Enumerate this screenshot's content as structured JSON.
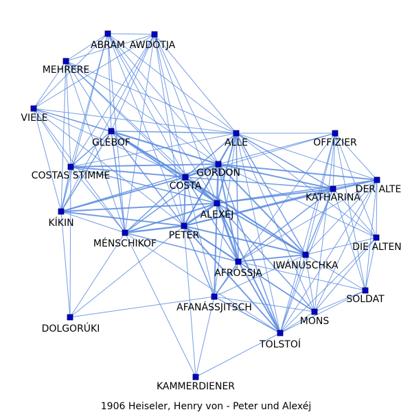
{
  "caption": "1906  Heiseler,  Henry  von  -  Peter  und  Alexéj",
  "colors": {
    "edge": "#5b8be0",
    "node_fill": "#0000cc",
    "node_stroke": "#000044",
    "background": "#ffffff"
  },
  "nodes": [
    {
      "id": "abram",
      "name": "ABRAM"
    },
    {
      "id": "awdotja",
      "name": "AWDÓTJA"
    },
    {
      "id": "mehrere",
      "name": "MEHRERE"
    },
    {
      "id": "viele",
      "name": "VIELE"
    },
    {
      "id": "glebof",
      "name": "GLÉBOF"
    },
    {
      "id": "alle",
      "name": "ALLE"
    },
    {
      "id": "offizier",
      "name": "OFFIZIER"
    },
    {
      "id": "gordon",
      "name": "GORDON"
    },
    {
      "id": "costas",
      "name": "COSTAS STIMME"
    },
    {
      "id": "costa",
      "name": "COSTA"
    },
    {
      "id": "deralte",
      "name": "DER ALTE"
    },
    {
      "id": "katharina",
      "name": "KATHARINA"
    },
    {
      "id": "alexej",
      "name": "ALEXÉJ"
    },
    {
      "id": "kikin",
      "name": "KÍKIN"
    },
    {
      "id": "peter",
      "name": "PETER"
    },
    {
      "id": "menschikof",
      "name": "MÉNSCHIKOF"
    },
    {
      "id": "diealten",
      "name": "DIE ALTEN"
    },
    {
      "id": "iwanuschka",
      "name": "IWÁNUSCHKA"
    },
    {
      "id": "afrossja",
      "name": "AFRÓSSJA"
    },
    {
      "id": "soldat",
      "name": "SOLDAT"
    },
    {
      "id": "afanassjitsch",
      "name": "AFANÁSSJITSCH"
    },
    {
      "id": "dolgoruki",
      "name": "DOLGORÚKI"
    },
    {
      "id": "mons",
      "name": "MONS"
    },
    {
      "id": "tolstoi",
      "name": "TOLSTOÍ"
    },
    {
      "id": "kammerdiener",
      "name": "KAMMERDIENER"
    }
  ],
  "edges": [
    [
      "alexej",
      "peter",
      3
    ],
    [
      "alexej",
      "afrossja",
      3
    ],
    [
      "alexej",
      "gordon",
      2.5
    ],
    [
      "alexej",
      "costa",
      2.5
    ],
    [
      "alexej",
      "glebof",
      2
    ],
    [
      "alexej",
      "katharina",
      2
    ],
    [
      "alexej",
      "iwanuschka",
      2
    ],
    [
      "alexej",
      "kikin",
      2
    ],
    [
      "alexej",
      "menschikof",
      2
    ],
    [
      "alexej",
      "alle",
      2
    ],
    [
      "alexej",
      "tolstoi",
      2
    ],
    [
      "alexej",
      "afanassjitsch",
      2
    ],
    [
      "alexej",
      "costas",
      1.5
    ],
    [
      "alexej",
      "deralte",
      1.5
    ],
    [
      "alexej",
      "mons",
      1.5
    ],
    [
      "peter",
      "menschikof",
      2.5
    ],
    [
      "peter",
      "costa",
      2
    ],
    [
      "peter",
      "gordon",
      2
    ],
    [
      "peter",
      "afrossja",
      2
    ],
    [
      "peter",
      "iwanuschka",
      2
    ],
    [
      "peter",
      "katharina",
      2
    ],
    [
      "peter",
      "tolstoi",
      2
    ],
    [
      "peter",
      "kikin",
      2
    ],
    [
      "peter",
      "alle",
      1.5
    ],
    [
      "peter",
      "afanassjitsch",
      1.5
    ],
    [
      "peter",
      "deralte",
      1.5
    ],
    [
      "peter",
      "dolgoruki",
      1
    ],
    [
      "peter",
      "kammerdiener",
      1
    ],
    [
      "peter",
      "mons",
      1.5
    ],
    [
      "peter",
      "glebof",
      1.5
    ],
    [
      "gordon",
      "costa",
      2.5
    ],
    [
      "gordon",
      "glebof",
      2
    ],
    [
      "gordon",
      "costas",
      2
    ],
    [
      "gordon",
      "alle",
      2
    ],
    [
      "gordon",
      "katharina",
      2
    ],
    [
      "gordon",
      "deralte",
      2
    ],
    [
      "gordon",
      "iwanuschka",
      2
    ],
    [
      "gordon",
      "afrossja",
      2
    ],
    [
      "gordon",
      "kikin",
      1.5
    ],
    [
      "gordon",
      "menschikof",
      1.5
    ],
    [
      "gordon",
      "offizier",
      1
    ],
    [
      "gordon",
      "tolstoi",
      1.5
    ],
    [
      "gordon",
      "diealten",
      1
    ],
    [
      "costa",
      "glebof",
      2
    ],
    [
      "costa",
      "costas",
      2
    ],
    [
      "costa",
      "kikin",
      2
    ],
    [
      "costa",
      "menschikof",
      1.5
    ],
    [
      "costa",
      "afrossja",
      1.5
    ],
    [
      "costa",
      "alle",
      1.5
    ],
    [
      "costa",
      "katharina",
      1.5
    ],
    [
      "costa",
      "iwanuschka",
      1.5
    ],
    [
      "costa",
      "viele",
      1
    ],
    [
      "costa",
      "mehrere",
      1
    ],
    [
      "costa",
      "abram",
      1
    ],
    [
      "costa",
      "awdotja",
      1
    ],
    [
      "costa",
      "afanassjitsch",
      1
    ],
    [
      "afrossja",
      "iwanuschka",
      2
    ],
    [
      "afrossja",
      "tolstoi",
      2
    ],
    [
      "afrossja",
      "afanassjitsch",
      1.5
    ],
    [
      "afrossja",
      "katharina",
      1.5
    ],
    [
      "afrossja",
      "mons",
      1.5
    ],
    [
      "afrossja",
      "soldat",
      1
    ],
    [
      "afrossja",
      "alle",
      1.5
    ],
    [
      "afrossja",
      "menschikof",
      1.5
    ],
    [
      "afrossja",
      "deralte",
      1
    ],
    [
      "iwanuschka",
      "katharina",
      1.5
    ],
    [
      "iwanuschka",
      "deralte",
      1
    ],
    [
      "iwanuschka",
      "alle",
      1.5
    ],
    [
      "iwanuschka",
      "mons",
      1
    ],
    [
      "iwanuschka",
      "tolstoi",
      1
    ],
    [
      "iwanuschka",
      "soldat",
      1
    ],
    [
      "iwanuschka",
      "diealten",
      1
    ],
    [
      "iwanuschka",
      "glebof",
      1.5
    ],
    [
      "katharina",
      "deralte",
      1.5
    ],
    [
      "katharina",
      "alle",
      1.5
    ],
    [
      "katharina",
      "offizier",
      1
    ],
    [
      "katharina",
      "tolstoi",
      1
    ],
    [
      "katharina",
      "diealten",
      1
    ],
    [
      "deralte",
      "alle",
      1
    ],
    [
      "deralte",
      "offizier",
      1
    ],
    [
      "deralte",
      "diealten",
      1
    ],
    [
      "deralte",
      "soldat",
      1
    ],
    [
      "deralte",
      "tolstoi",
      1
    ],
    [
      "deralte",
      "mons",
      1
    ],
    [
      "alle",
      "offizier",
      1
    ],
    [
      "alle",
      "glebof",
      1.5
    ],
    [
      "alle",
      "costas",
      1
    ],
    [
      "alle",
      "abram",
      1
    ],
    [
      "alle",
      "awdotja",
      1
    ],
    [
      "alle",
      "mehrere",
      1
    ],
    [
      "alle",
      "viele",
      1
    ],
    [
      "alle",
      "tolstoi",
      1
    ],
    [
      "alle",
      "mons",
      1
    ],
    [
      "alle",
      "afanassjitsch",
      1
    ],
    [
      "alle",
      "diealten",
      1
    ],
    [
      "glebof",
      "costas",
      1.5
    ],
    [
      "glebof",
      "kikin",
      1.5
    ],
    [
      "glebof",
      "menschikof",
      1.5
    ],
    [
      "glebof",
      "abram",
      1
    ],
    [
      "glebof",
      "awdotja",
      1
    ],
    [
      "glebof",
      "mehrere",
      1
    ],
    [
      "glebof",
      "viele",
      1
    ],
    [
      "costas",
      "kikin",
      1.5
    ],
    [
      "costas",
      "menschikof",
      1
    ],
    [
      "costas",
      "abram",
      1
    ],
    [
      "costas",
      "awdotja",
      1
    ],
    [
      "costas",
      "mehrere",
      1
    ],
    [
      "costas",
      "viele",
      1
    ],
    [
      "costas",
      "dolgoruki",
      1
    ],
    [
      "kikin",
      "menschikof",
      1
    ],
    [
      "kikin",
      "abram",
      1
    ],
    [
      "kikin",
      "awdotja",
      1
    ],
    [
      "kikin",
      "mehrere",
      1
    ],
    [
      "kikin",
      "viele",
      1
    ],
    [
      "kikin",
      "dolgoruki",
      1
    ],
    [
      "menschikof",
      "abram",
      1
    ],
    [
      "menschikof",
      "awdotja",
      1
    ],
    [
      "menschikof",
      "mehrere",
      1
    ],
    [
      "menschikof",
      "viele",
      1
    ],
    [
      "menschikof",
      "kammerdiener",
      1
    ],
    [
      "menschikof",
      "dolgoruki",
      1
    ],
    [
      "menschikof",
      "tolstoi",
      1
    ],
    [
      "abram",
      "awdotja",
      1
    ],
    [
      "abram",
      "mehrere",
      1
    ],
    [
      "abram",
      "viele",
      1
    ],
    [
      "awdotja",
      "mehrere",
      1
    ],
    [
      "awdotja",
      "viele",
      1
    ],
    [
      "mehrere",
      "viele",
      1
    ],
    [
      "afanassjitsch",
      "tolstoi",
      1.5
    ],
    [
      "afanassjitsch",
      "mons",
      1
    ],
    [
      "afanassjitsch",
      "kammerdiener",
      1
    ],
    [
      "afanassjitsch",
      "dolgoruki",
      1
    ],
    [
      "afanassjitsch",
      "iwanuschka",
      1
    ],
    [
      "afanassjitsch",
      "offizier",
      1
    ],
    [
      "tolstoi",
      "mons",
      1
    ],
    [
      "tolstoi",
      "soldat",
      1
    ],
    [
      "tolstoi",
      "diealten",
      1
    ],
    [
      "tolstoi",
      "kammerdiener",
      1
    ],
    [
      "tolstoi",
      "offizier",
      1
    ],
    [
      "mons",
      "soldat",
      1
    ],
    [
      "mons",
      "diealten",
      1
    ],
    [
      "mons",
      "offizier",
      1
    ],
    [
      "soldat",
      "diealten",
      1
    ],
    [
      "soldat",
      "offizier",
      1
    ],
    [
      "soldat",
      "katharina",
      1
    ],
    [
      "diealten",
      "offizier",
      1
    ],
    [
      "offizier",
      "costa",
      1
    ],
    [
      "offizier",
      "iwanuschka",
      1
    ],
    [
      "abram",
      "peter",
      1
    ],
    [
      "awdotja",
      "peter",
      1
    ],
    [
      "mehrere",
      "gordon",
      1
    ],
    [
      "viele",
      "gordon",
      1
    ],
    [
      "viele",
      "peter",
      1
    ],
    [
      "abram",
      "alexej",
      1
    ],
    [
      "awdotja",
      "alexej",
      1
    ],
    [
      "mehrere",
      "alexej",
      1
    ],
    [
      "awdotja",
      "gordon",
      1
    ],
    [
      "abram",
      "gordon",
      1
    ]
  ]
}
